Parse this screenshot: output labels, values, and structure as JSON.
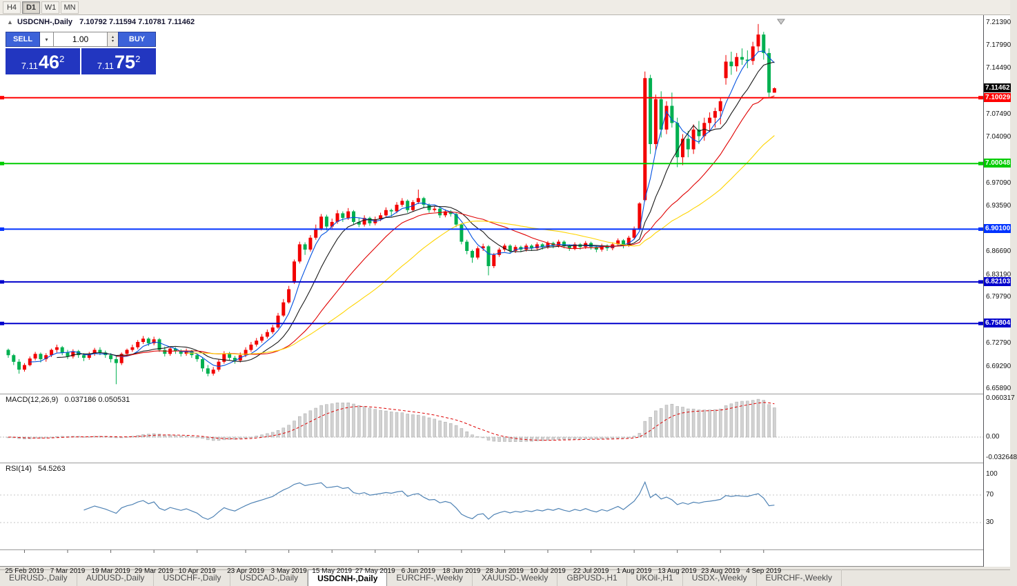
{
  "toolbar": {
    "timeframes": [
      {
        "label": "H4",
        "active": false
      },
      {
        "label": "D1",
        "active": true
      },
      {
        "label": "W1",
        "active": false
      },
      {
        "label": "MN",
        "active": false
      }
    ]
  },
  "chart": {
    "symbol_title": "USDCNH-,Daily",
    "ohlc_text": "7.10792 7.11594 7.10781 7.11462"
  },
  "trade_panel": {
    "sell_label": "SELL",
    "buy_label": "BUY",
    "volume": "1.00",
    "bid": {
      "prefix": "7.11",
      "big": "46",
      "sup": "2"
    },
    "ask": {
      "prefix": "7.11",
      "big": "75",
      "sup": "2"
    },
    "icons": {
      "chevron_down": "▾",
      "stepper_up": "▴",
      "stepper_down": "▾",
      "symbol_marker": "▲"
    }
  },
  "indicators": {
    "macd_label": "MACD(12,26,9)",
    "macd_values_text": "0.037186 0.050531",
    "macd_ticks": [
      {
        "label": "0.060317",
        "value": 0.060317
      },
      {
        "label": "0.00",
        "value": 0
      },
      {
        "label": "-0.032648",
        "value": -0.032648
      }
    ],
    "rsi_label": "RSI(14)",
    "rsi_value": "54.5263",
    "rsi_ticks": [
      {
        "label": "100",
        "value": 100
      },
      {
        "label": "70",
        "value": 70
      },
      {
        "label": "30",
        "value": 30
      }
    ],
    "rsi_levels": [
      70,
      30
    ]
  },
  "price_axis": {
    "ticks": [
      {
        "label": "7.21390",
        "value": 7.2139
      },
      {
        "label": "7.17990",
        "value": 7.1799
      },
      {
        "label": "7.14490",
        "value": 7.1449
      },
      {
        "label": "7.07490",
        "value": 7.0749
      },
      {
        "label": "7.04090",
        "value": 7.0409
      },
      {
        "label": "6.97090",
        "value": 6.9709
      },
      {
        "label": "6.93590",
        "value": 6.9359
      },
      {
        "label": "6.86690",
        "value": 6.8669
      },
      {
        "label": "6.83190",
        "value": 6.8319
      },
      {
        "label": "6.79790",
        "value": 6.7979
      },
      {
        "label": "6.72790",
        "value": 6.7279
      },
      {
        "label": "6.69290",
        "value": 6.6929
      },
      {
        "label": "6.65890",
        "value": 6.6589
      }
    ],
    "current": {
      "label": "7.11462",
      "value": 7.11462,
      "bg": "#000000"
    }
  },
  "hlines": [
    {
      "label": "7.10029",
      "value": 7.10029,
      "color": "#ff0000"
    },
    {
      "label": "7.00048",
      "value": 7.00048,
      "color": "#00cc00"
    },
    {
      "label": "6.90100",
      "value": 6.901,
      "color": "#0033ff"
    },
    {
      "label": "6.82103",
      "value": 6.82103,
      "color": "#0000cc"
    },
    {
      "label": "6.75804",
      "value": 6.75804,
      "color": "#0000cc"
    }
  ],
  "chart_data": {
    "type": "candlestick",
    "title": "USDCNH-,Daily",
    "symbol": "USDCNH",
    "timeframe": "Daily",
    "ylim": [
      6.6527,
      7.2233
    ],
    "colors": {
      "up": "#f20000",
      "down": "#00b050"
    },
    "ma_lines": [
      {
        "period": 5,
        "color": "#0050e0"
      },
      {
        "period": 10,
        "color": "#181818"
      },
      {
        "period": 21,
        "color": "#e00000"
      },
      {
        "period": 34,
        "color": "#ffd400"
      }
    ],
    "x_labels": [
      {
        "label": "25 Feb 2019",
        "index": 3
      },
      {
        "label": "7 Mar 2019",
        "index": 11
      },
      {
        "label": "19 Mar 2019",
        "index": 19
      },
      {
        "label": "29 Mar 2019",
        "index": 27
      },
      {
        "label": "10 Apr 2019",
        "index": 35
      },
      {
        "label": "23 Apr 2019",
        "index": 44
      },
      {
        "label": "3 May 2019",
        "index": 52
      },
      {
        "label": "15 May 2019",
        "index": 60
      },
      {
        "label": "27 May 2019",
        "index": 68
      },
      {
        "label": "6 Jun 2019",
        "index": 76
      },
      {
        "label": "18 Jun 2019",
        "index": 84
      },
      {
        "label": "28 Jun 2019",
        "index": 92
      },
      {
        "label": "10 Jul 2019",
        "index": 100
      },
      {
        "label": "22 Jul 2019",
        "index": 108
      },
      {
        "label": "1 Aug 2019",
        "index": 116
      },
      {
        "label": "13 Aug 2019",
        "index": 124
      },
      {
        "label": "23 Aug 2019",
        "index": 132
      },
      {
        "label": "4 Sep 2019",
        "index": 140
      }
    ],
    "candles": [
      [
        6.718,
        6.72,
        6.706,
        6.71
      ],
      [
        6.71,
        6.712,
        6.695,
        6.7
      ],
      [
        6.7,
        6.704,
        6.682,
        6.688
      ],
      [
        6.688,
        6.698,
        6.685,
        6.695
      ],
      [
        6.695,
        6.708,
        6.693,
        6.705
      ],
      [
        6.705,
        6.715,
        6.702,
        6.712
      ],
      [
        6.712,
        6.714,
        6.699,
        6.704
      ],
      [
        6.704,
        6.713,
        6.7,
        6.71
      ],
      [
        6.71,
        6.72,
        6.707,
        6.718
      ],
      [
        6.718,
        6.726,
        6.714,
        6.722
      ],
      [
        6.722,
        6.724,
        6.71,
        6.714
      ],
      [
        6.714,
        6.718,
        6.704,
        6.708
      ],
      [
        6.708,
        6.719,
        6.705,
        6.716
      ],
      [
        6.716,
        6.718,
        6.706,
        6.71
      ],
      [
        6.71,
        6.713,
        6.701,
        6.706
      ],
      [
        6.706,
        6.715,
        6.703,
        6.712
      ],
      [
        6.712,
        6.721,
        6.709,
        6.718
      ],
      [
        6.718,
        6.722,
        6.71,
        6.714
      ],
      [
        6.714,
        6.717,
        6.706,
        6.71
      ],
      [
        6.71,
        6.713,
        6.699,
        6.704
      ],
      [
        6.704,
        6.708,
        6.666,
        6.698
      ],
      [
        6.698,
        6.714,
        6.695,
        6.712
      ],
      [
        6.712,
        6.72,
        6.708,
        6.718
      ],
      [
        6.718,
        6.726,
        6.715,
        6.722
      ],
      [
        6.722,
        6.733,
        6.719,
        6.73
      ],
      [
        6.73,
        6.739,
        6.727,
        6.735
      ],
      [
        6.735,
        6.737,
        6.724,
        6.728
      ],
      [
        6.728,
        6.738,
        6.725,
        6.734
      ],
      [
        6.734,
        6.736,
        6.715,
        6.718
      ],
      [
        6.718,
        6.723,
        6.708,
        6.712
      ],
      [
        6.712,
        6.723,
        6.709,
        6.72
      ],
      [
        6.72,
        6.722,
        6.712,
        6.716
      ],
      [
        6.716,
        6.719,
        6.708,
        6.712
      ],
      [
        6.712,
        6.72,
        6.709,
        6.716
      ],
      [
        6.716,
        6.718,
        6.706,
        6.71
      ],
      [
        6.71,
        6.712,
        6.7,
        6.704
      ],
      [
        6.704,
        6.706,
        6.685,
        6.69
      ],
      [
        6.69,
        6.695,
        6.678,
        6.682
      ],
      [
        6.682,
        6.692,
        6.679,
        6.688
      ],
      [
        6.688,
        6.704,
        6.685,
        6.7
      ],
      [
        6.7,
        6.716,
        6.697,
        6.712
      ],
      [
        6.712,
        6.715,
        6.702,
        6.706
      ],
      [
        6.706,
        6.709,
        6.697,
        6.702
      ],
      [
        6.702,
        6.714,
        6.699,
        6.71
      ],
      [
        6.71,
        6.722,
        6.707,
        6.718
      ],
      [
        6.718,
        6.73,
        6.715,
        6.726
      ],
      [
        6.726,
        6.736,
        6.723,
        6.732
      ],
      [
        6.732,
        6.742,
        6.729,
        6.738
      ],
      [
        6.738,
        6.749,
        6.735,
        6.745
      ],
      [
        6.745,
        6.756,
        6.742,
        6.752
      ],
      [
        6.752,
        6.774,
        6.75,
        6.77
      ],
      [
        6.77,
        6.795,
        6.768,
        6.79
      ],
      [
        6.79,
        6.815,
        6.788,
        6.81
      ],
      [
        6.82,
        6.855,
        6.818,
        6.852
      ],
      [
        6.852,
        6.882,
        6.849,
        6.878
      ],
      [
        6.878,
        6.881,
        6.862,
        6.87
      ],
      [
        6.87,
        6.892,
        6.867,
        6.888
      ],
      [
        6.888,
        6.908,
        6.885,
        6.902
      ],
      [
        6.902,
        6.924,
        6.899,
        6.92
      ],
      [
        6.92,
        6.923,
        6.899,
        6.905
      ],
      [
        6.905,
        6.917,
        6.9,
        6.912
      ],
      [
        6.912,
        6.93,
        6.909,
        6.925
      ],
      [
        6.925,
        6.928,
        6.912,
        6.918
      ],
      [
        6.918,
        6.933,
        6.915,
        6.928
      ],
      [
        6.928,
        6.93,
        6.908,
        6.912
      ],
      [
        6.912,
        6.918,
        6.904,
        6.908
      ],
      [
        6.908,
        6.922,
        6.905,
        6.918
      ],
      [
        6.918,
        6.92,
        6.906,
        6.91
      ],
      [
        6.91,
        6.92,
        6.907,
        6.916
      ],
      [
        6.916,
        6.926,
        6.913,
        6.922
      ],
      [
        6.922,
        6.934,
        6.919,
        6.93
      ],
      [
        6.93,
        6.932,
        6.92,
        6.928
      ],
      [
        6.928,
        6.942,
        6.925,
        6.938
      ],
      [
        6.938,
        6.948,
        6.935,
        6.944
      ],
      [
        6.944,
        6.946,
        6.926,
        6.93
      ],
      [
        6.93,
        6.945,
        6.927,
        6.942
      ],
      [
        6.942,
        6.961,
        6.939,
        6.948
      ],
      [
        6.948,
        6.95,
        6.933,
        6.938
      ],
      [
        6.938,
        6.94,
        6.926,
        6.93
      ],
      [
        6.93,
        6.936,
        6.927,
        6.932
      ],
      [
        6.932,
        6.934,
        6.918,
        6.922
      ],
      [
        6.922,
        6.931,
        6.919,
        6.928
      ],
      [
        6.928,
        6.93,
        6.92,
        6.924
      ],
      [
        6.924,
        6.926,
        6.904,
        6.908
      ],
      [
        6.908,
        6.91,
        6.878,
        6.882
      ],
      [
        6.882,
        6.885,
        6.863,
        6.868
      ],
      [
        6.868,
        6.87,
        6.85,
        6.858
      ],
      [
        6.858,
        6.875,
        6.855,
        6.872
      ],
      [
        6.872,
        6.879,
        6.868,
        6.875
      ],
      [
        6.875,
        6.877,
        6.831,
        6.845
      ],
      [
        6.845,
        6.865,
        6.842,
        6.862
      ],
      [
        6.862,
        6.873,
        6.859,
        6.87
      ],
      [
        6.87,
        6.879,
        6.867,
        6.876
      ],
      [
        6.876,
        6.878,
        6.864,
        6.868
      ],
      [
        6.868,
        6.877,
        6.865,
        6.874
      ],
      [
        6.874,
        6.876,
        6.866,
        6.87
      ],
      [
        6.87,
        6.879,
        6.867,
        6.876
      ],
      [
        6.876,
        6.878,
        6.868,
        6.872
      ],
      [
        6.872,
        6.881,
        6.869,
        6.878
      ],
      [
        6.878,
        6.88,
        6.87,
        6.874
      ],
      [
        6.874,
        6.883,
        6.871,
        6.88
      ],
      [
        6.88,
        6.882,
        6.872,
        6.876
      ],
      [
        6.876,
        6.885,
        6.873,
        6.882
      ],
      [
        6.882,
        6.884,
        6.872,
        6.876
      ],
      [
        6.876,
        6.878,
        6.868,
        6.872
      ],
      [
        6.872,
        6.881,
        6.869,
        6.878
      ],
      [
        6.878,
        6.88,
        6.87,
        6.874
      ],
      [
        6.874,
        6.883,
        6.871,
        6.88
      ],
      [
        6.88,
        6.882,
        6.87,
        6.874
      ],
      [
        6.874,
        6.876,
        6.866,
        6.87
      ],
      [
        6.87,
        6.879,
        6.867,
        6.876
      ],
      [
        6.876,
        6.878,
        6.868,
        6.872
      ],
      [
        6.872,
        6.881,
        6.869,
        6.878
      ],
      [
        6.878,
        6.887,
        6.875,
        6.884
      ],
      [
        6.884,
        6.886,
        6.872,
        6.876
      ],
      [
        6.876,
        6.891,
        6.874,
        6.888
      ],
      [
        6.888,
        6.905,
        6.886,
        6.902
      ],
      [
        6.902,
        6.942,
        6.899,
        6.94
      ],
      [
        6.945,
        7.14,
        6.943,
        7.13
      ],
      [
        7.13,
        7.135,
        7.015,
        7.03
      ],
      [
        7.03,
        7.105,
        7.02,
        7.098
      ],
      [
        7.098,
        7.11,
        7.04,
        7.052
      ],
      [
        7.052,
        7.095,
        7.045,
        7.088
      ],
      [
        7.088,
        7.108,
        7.055,
        7.062
      ],
      [
        7.062,
        7.07,
        6.995,
        7.01
      ],
      [
        7.01,
        7.045,
        6.998,
        7.038
      ],
      [
        7.038,
        7.05,
        7.01,
        7.022
      ],
      [
        7.022,
        7.06,
        7.015,
        7.052
      ],
      [
        7.052,
        7.065,
        7.03,
        7.042
      ],
      [
        7.042,
        7.07,
        7.035,
        7.062
      ],
      [
        7.062,
        7.078,
        7.048,
        7.07
      ],
      [
        7.07,
        7.085,
        7.055,
        7.08
      ],
      [
        7.08,
        7.1,
        7.06,
        7.095
      ],
      [
        7.13,
        7.165,
        7.12,
        7.155
      ],
      [
        7.155,
        7.17,
        7.135,
        7.148
      ],
      [
        7.148,
        7.168,
        7.14,
        7.162
      ],
      [
        7.162,
        7.175,
        7.15,
        7.158
      ],
      [
        7.158,
        7.172,
        7.145,
        7.156
      ],
      [
        7.156,
        7.185,
        7.15,
        7.178
      ],
      [
        7.178,
        7.212,
        7.17,
        7.196
      ],
      [
        7.196,
        7.2,
        7.158,
        7.168
      ],
      [
        7.168,
        7.175,
        7.1,
        7.108
      ],
      [
        7.10792,
        7.11594,
        7.10781,
        7.11462
      ]
    ]
  },
  "tab_bar": {
    "active_index": 4,
    "tabs": [
      {
        "label": "EURUSD-,Daily"
      },
      {
        "label": "AUDUSD-,Daily"
      },
      {
        "label": "USDCHF-,Daily"
      },
      {
        "label": "USDCAD-,Daily"
      },
      {
        "label": "USDCNH-,Daily"
      },
      {
        "label": "EURCHF-,Weekly"
      },
      {
        "label": "XAUUSD-,Weekly"
      },
      {
        "label": "GBPUSD-,H1"
      },
      {
        "label": "UKOil-,H1"
      },
      {
        "label": "USDX-,Weekly"
      },
      {
        "label": "EURCHF-,Weekly"
      }
    ]
  }
}
